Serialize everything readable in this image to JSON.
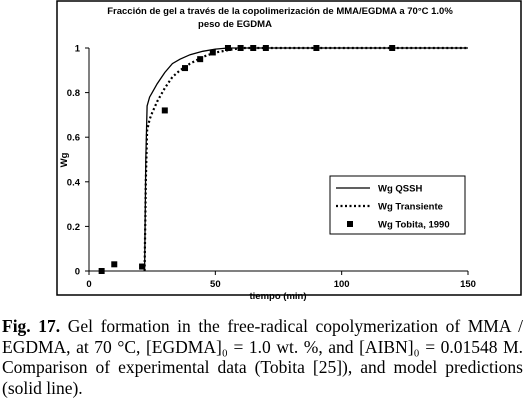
{
  "chart_data": {
    "type": "line",
    "title_line1": "Fracción de gel  a través de la copolimerización de MMA/EGDMA a 70°C 1.0%",
    "title_line2": "peso de EGDMA",
    "xlabel": "tiempo (min)",
    "ylabel": "Wg",
    "xlim": [
      0,
      150
    ],
    "ylim": [
      0,
      1
    ],
    "x_ticks": [
      "0",
      "50",
      "100",
      "150"
    ],
    "y_ticks": [
      "0",
      "0.2",
      "0.4",
      "0.6",
      "0.8",
      "1"
    ],
    "grid": false,
    "legend_position": "right",
    "series": [
      {
        "name": "Wg QSSH",
        "style": "solid",
        "x": [
          22,
          22.5,
          23,
          24,
          25,
          27,
          30,
          33,
          36,
          40,
          45,
          50,
          55,
          60,
          70,
          90,
          120,
          150
        ],
        "y": [
          0,
          0.5,
          0.74,
          0.78,
          0.8,
          0.84,
          0.89,
          0.93,
          0.95,
          0.97,
          0.985,
          0.995,
          1.0,
          1.0,
          1.0,
          1.0,
          1.0,
          1.0
        ]
      },
      {
        "name": "Wg Transiente",
        "style": "dotted",
        "x": [
          22,
          22.5,
          23,
          24,
          25,
          27,
          30,
          33,
          36,
          40,
          45,
          50,
          55,
          60,
          70,
          90,
          120,
          150
        ],
        "y": [
          0,
          0.4,
          0.63,
          0.68,
          0.71,
          0.76,
          0.82,
          0.87,
          0.9,
          0.93,
          0.96,
          0.98,
          0.99,
          1.0,
          1.0,
          1.0,
          1.0,
          1.0
        ]
      },
      {
        "name": "Wg Tobita, 1990",
        "style": "marker",
        "x": [
          5,
          10,
          21,
          30,
          38,
          44,
          49,
          55,
          60,
          65,
          70,
          90,
          120
        ],
        "y": [
          0.0,
          0.03,
          0.02,
          0.72,
          0.91,
          0.95,
          0.98,
          1.0,
          1.0,
          1.0,
          1.0,
          1.0,
          1.0
        ]
      }
    ]
  },
  "caption": {
    "label": "Fig. 17.",
    "text": " Gel formation in the free-radical copolymerization of MMA / EGDMA, at 70 °C, [EGDMA]₀ = 1.0 wt. %, and [AIBN]₀ = 0.01548 M. Comparison of experimental data (Tobita [25]), and model predictions (solid line)."
  }
}
